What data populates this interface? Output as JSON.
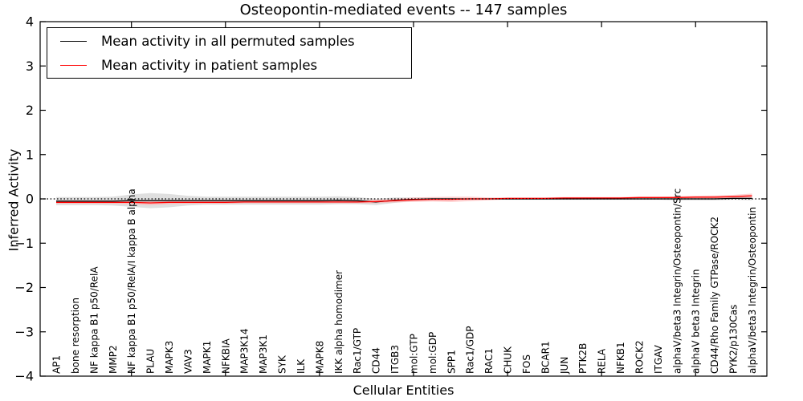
{
  "figure": {
    "background": "#ffffff",
    "frame_color": "#000000"
  },
  "chart_data": {
    "type": "line",
    "title": "Osteopontin-mediated events -- 147 samples",
    "xlabel": "Cellular Entities",
    "ylabel": "Inferred Activity",
    "ylim": [
      -4,
      4
    ],
    "ytick_values": [
      4,
      3,
      2,
      1,
      0,
      -1,
      -2,
      -3,
      -4
    ],
    "ytick_labels": [
      "4",
      "3",
      "2",
      "1",
      "0",
      "−1",
      "−2",
      "−3",
      "−4"
    ],
    "grid": false,
    "zero_line_style": "dotted",
    "legend_position": "upper-left",
    "top_tick_indices": [
      4,
      9,
      14,
      19,
      24,
      29,
      34
    ],
    "categories": [
      "AP1",
      "bone resorption",
      "NF kappa B1 p50/RelA",
      "MMP2",
      "NF kappa B1 p50/RelA/I kappa B alpha",
      "PLAU",
      "MAPK3",
      "VAV3",
      "MAPK1",
      "NFKBIA",
      "MAP3K14",
      "MAP3K1",
      "SYK",
      "ILK",
      "MAPK8",
      "IKK alpha homodimer",
      "Rac1/GTP",
      "CD44",
      "ITGB3",
      "mol:GTP",
      "mol:GDP",
      "SPP1",
      "Rac1/GDP",
      "RAC1",
      "CHUK",
      "FOS",
      "BCAR1",
      "JUN",
      "PTK2B",
      "RELA",
      "NFKB1",
      "ROCK2",
      "ITGAV",
      "alphaV/beta3 Integrin/Osteopontin/Src",
      "alphaV beta3 Integrin",
      "CD44/Rho Family GTPase/ROCK2",
      "PYK2/p130Cas",
      "alphaV/beta3 Integrin/Osteopontin"
    ],
    "series": [
      {
        "name": "Mean activity in all permuted samples",
        "color": "#000000",
        "band_color": "#c9c9c9",
        "band_opacity": 0.6,
        "values": [
          -0.05,
          -0.05,
          -0.05,
          -0.05,
          -0.04,
          -0.04,
          -0.04,
          -0.04,
          -0.04,
          -0.04,
          -0.04,
          -0.04,
          -0.04,
          -0.04,
          -0.04,
          -0.03,
          -0.04,
          -0.07,
          -0.03,
          -0.01,
          0,
          0,
          0,
          0,
          0,
          0,
          0,
          0,
          0,
          0,
          0,
          0,
          0,
          0,
          0,
          0,
          0.01,
          0.01
        ],
        "band_halfwidth": [
          0.09,
          0.09,
          0.09,
          0.1,
          0.14,
          0.17,
          0.15,
          0.11,
          0.09,
          0.09,
          0.09,
          0.09,
          0.09,
          0.09,
          0.09,
          0.09,
          0.08,
          0.07,
          0.06,
          0.04,
          0.03,
          0.02,
          0.02,
          0.02,
          0.02,
          0.02,
          0.02,
          0.02,
          0.02,
          0.02,
          0.02,
          0.02,
          0.02,
          0.03,
          0.03,
          0.03,
          0.03,
          0.04
        ]
      },
      {
        "name": "Mean activity in patient samples",
        "color": "#ff0000",
        "band_color": "#ffaaaa",
        "band_opacity": 0.55,
        "values": [
          -0.08,
          -0.08,
          -0.08,
          -0.08,
          -0.08,
          -0.09,
          -0.08,
          -0.08,
          -0.08,
          -0.08,
          -0.07,
          -0.07,
          -0.07,
          -0.07,
          -0.07,
          -0.07,
          -0.07,
          -0.06,
          -0.04,
          -0.02,
          -0.01,
          -0.01,
          0,
          0,
          0.01,
          0.01,
          0.01,
          0.02,
          0.02,
          0.02,
          0.02,
          0.03,
          0.03,
          0.03,
          0.04,
          0.04,
          0.05,
          0.07
        ],
        "band_halfwidth": [
          0.03,
          0.03,
          0.03,
          0.03,
          0.04,
          0.05,
          0.04,
          0.03,
          0.03,
          0.03,
          0.03,
          0.03,
          0.03,
          0.03,
          0.03,
          0.03,
          0.03,
          0.04,
          0.04,
          0.05,
          0.05,
          0.06,
          0.05,
          0.03,
          0.02,
          0.02,
          0.02,
          0.02,
          0.02,
          0.02,
          0.02,
          0.02,
          0.02,
          0.03,
          0.03,
          0.04,
          0.04,
          0.05
        ]
      }
    ]
  }
}
